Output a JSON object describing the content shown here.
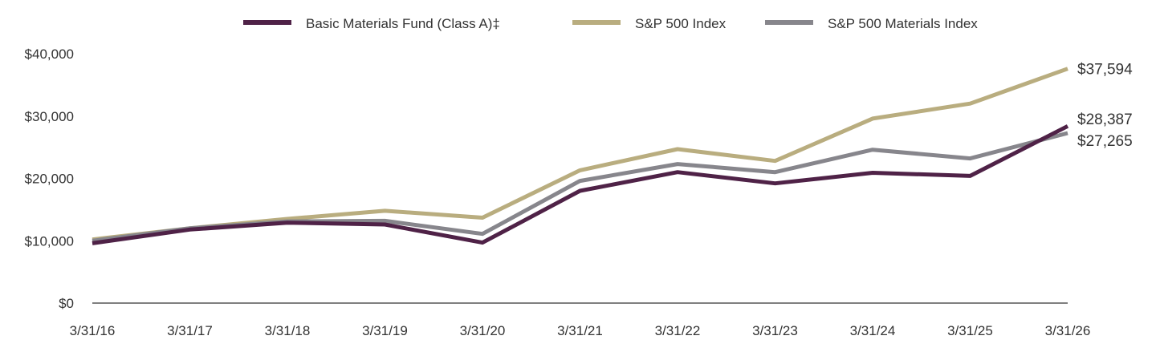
{
  "chart_data": {
    "type": "line",
    "title": "",
    "xlabel": "",
    "ylabel": "",
    "x": [
      "3/31/16",
      "3/31/17",
      "3/31/18",
      "3/31/19",
      "3/31/20",
      "3/31/21",
      "3/31/22",
      "3/31/23",
      "3/31/24",
      "3/31/25",
      "3/31/26"
    ],
    "ylim": [
      0,
      40000
    ],
    "y_ticks": [
      {
        "value": 0,
        "label": "$0"
      },
      {
        "value": 10000,
        "label": "$10,000"
      },
      {
        "value": 20000,
        "label": "$20,000"
      },
      {
        "value": 30000,
        "label": "$30,000"
      },
      {
        "value": 40000,
        "label": "$40,000"
      }
    ],
    "grid": false,
    "legend_position": "top-center",
    "series": [
      {
        "name": "Basic Materials Fund (Class A)‡",
        "color": "#4f2247",
        "values": [
          9600,
          11800,
          12900,
          12600,
          9700,
          18000,
          21000,
          19200,
          20900,
          20400,
          28387
        ],
        "end_label": "$28,387"
      },
      {
        "name": "S&P 500 Index",
        "color": "#b9ad7f",
        "values": [
          10200,
          12000,
          13500,
          14800,
          13700,
          21300,
          24700,
          22800,
          29600,
          32000,
          37594
        ],
        "end_label": "$37,594"
      },
      {
        "name": "S&P 500 Materials Index",
        "color": "#87868c",
        "values": [
          10000,
          12000,
          13100,
          13200,
          11100,
          19600,
          22300,
          21000,
          24600,
          23200,
          27265
        ],
        "end_label": "$27,265"
      }
    ]
  }
}
